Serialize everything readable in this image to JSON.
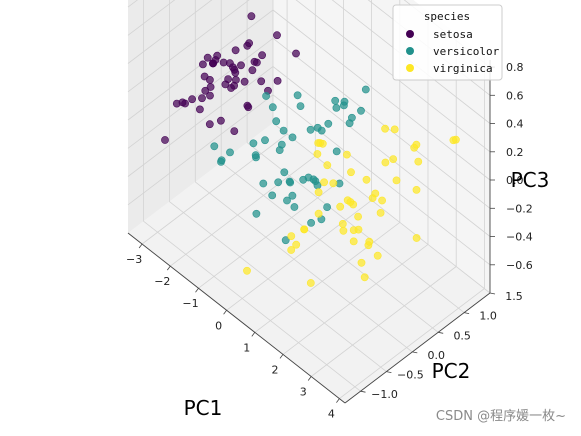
{
  "chart_data": {
    "type": "scatter",
    "projection": "3d",
    "xlabel": "PC1",
    "ylabel": "PC2",
    "zlabel": "PC3",
    "xlim": [
      -3.5,
      4.2
    ],
    "ylim": [
      -1.3,
      1.5
    ],
    "zlim": [
      -0.8,
      0.85
    ],
    "xticks": [
      "−3",
      "−2",
      "−1",
      "0",
      "1",
      "2",
      "3",
      "4"
    ],
    "yticks": [
      "−1.0",
      "−0.5",
      "0.0",
      "0.5",
      "1.0",
      "1.5"
    ],
    "zticks": [
      "−0.6",
      "−0.4",
      "−0.2",
      "0.0",
      "0.2",
      "0.4",
      "0.6",
      "0.8"
    ],
    "grid": true,
    "legend": {
      "title": "species",
      "placement": "top-right",
      "entries": [
        "setosa",
        "versicolor",
        "virginica"
      ]
    },
    "colors": {
      "setosa": "#440154",
      "versicolor": "#21918c",
      "virginica": "#fde725"
    },
    "series": [
      {
        "name": "setosa",
        "points": [
          [
            -2.7,
            0.32,
            0.03
          ],
          [
            -2.73,
            -0.18,
            0.25
          ],
          [
            -2.89,
            -0.14,
            -0.02
          ],
          [
            -2.75,
            -0.32,
            -0.08
          ],
          [
            -2.73,
            0.33,
            -0.09
          ],
          [
            -2.28,
            0.74,
            -0.17
          ],
          [
            -2.82,
            -0.09,
            -0.26
          ],
          [
            -2.63,
            0.16,
            0.02
          ],
          [
            -2.89,
            -0.58,
            0.02
          ],
          [
            -2.67,
            -0.11,
            0.2
          ],
          [
            -2.51,
            0.65,
            0.02
          ],
          [
            -2.61,
            0.01,
            -0.23
          ],
          [
            -2.79,
            -0.24,
            0.21
          ],
          [
            -3.22,
            -0.51,
            -0.06
          ],
          [
            -2.64,
            1.18,
            0.35
          ],
          [
            -2.39,
            1.34,
            -0.09
          ],
          [
            -2.62,
            0.81,
            0.01
          ],
          [
            -2.65,
            0.31,
            0.02
          ],
          [
            -2.2,
            0.87,
            0.2
          ],
          [
            -2.59,
            0.51,
            -0.26
          ],
          [
            -2.31,
            0.39,
            0.26
          ],
          [
            -2.54,
            0.43,
            -0.06
          ],
          [
            -3.22,
            0.13,
            -0.07
          ],
          [
            -2.3,
            0.1,
            -0.28
          ],
          [
            -2.36,
            -0.04,
            0.08
          ],
          [
            -2.51,
            -0.15,
            0.26
          ],
          [
            -2.47,
            0.13,
            -0.01
          ],
          [
            -2.56,
            0.37,
            0.07
          ],
          [
            -2.64,
            0.31,
            0.18
          ],
          [
            -2.63,
            -0.19,
            0.0
          ],
          [
            -2.59,
            -0.2,
            0.07
          ],
          [
            -2.41,
            0.41,
            0.22
          ],
          [
            -2.65,
            0.81,
            -0.18
          ],
          [
            -2.6,
            1.1,
            -0.25
          ],
          [
            -2.67,
            -0.11,
            0.2
          ],
          [
            -2.87,
            0.08,
            0.17
          ],
          [
            -2.63,
            0.61,
            0.34
          ],
          [
            -2.67,
            -0.11,
            0.2
          ],
          [
            -2.98,
            -0.48,
            -0.03
          ],
          [
            -2.59,
            0.23,
            0.09
          ],
          [
            -2.77,
            0.27,
            0.08
          ],
          [
            -2.85,
            -0.94,
            -0.14
          ],
          [
            -2.99,
            -0.34,
            -0.04
          ],
          [
            -2.41,
            0.19,
            0.04
          ],
          [
            -2.21,
            0.44,
            0.13
          ],
          [
            -2.71,
            -0.25,
            0.14
          ],
          [
            -2.54,
            0.5,
            -0.26
          ],
          [
            -2.84,
            -0.23,
            -0.04
          ],
          [
            -2.54,
            0.58,
            -0.02
          ],
          [
            -2.7,
            0.11,
            0.14
          ]
        ]
      },
      {
        "name": "versicolor",
        "points": [
          [
            1.28,
            0.69,
            0.41
          ],
          [
            0.93,
            0.32,
            0.02
          ],
          [
            1.46,
            0.5,
            0.34
          ],
          [
            0.18,
            -0.83,
            0.18
          ],
          [
            1.09,
            0.07,
            0.31
          ],
          [
            0.64,
            -0.42,
            -0.04
          ],
          [
            1.1,
            0.28,
            -0.17
          ],
          [
            -0.75,
            -1.0,
            0.05
          ],
          [
            1.04,
            0.23,
            0.42
          ],
          [
            -0.01,
            -0.72,
            -0.28
          ],
          [
            -0.51,
            -1.26,
            0.27
          ],
          [
            0.51,
            -0.1,
            -0.13
          ],
          [
            0.26,
            -0.55,
            0.47
          ],
          [
            0.98,
            -0.12,
            -0.06
          ],
          [
            -0.17,
            -0.25,
            0.22
          ],
          [
            0.93,
            0.47,
            0.33
          ],
          [
            0.66,
            -0.35,
            -0.23
          ],
          [
            0.24,
            -0.33,
            0.24
          ],
          [
            0.94,
            -0.54,
            0.36
          ],
          [
            0.04,
            -0.58,
            0.21
          ],
          [
            1.12,
            -0.08,
            -0.32
          ],
          [
            0.36,
            -0.07,
            0.36
          ],
          [
            1.3,
            -0.33,
            0.06
          ],
          [
            0.92,
            -0.18,
            0.31
          ],
          [
            0.71,
            0.15,
            0.18
          ],
          [
            0.9,
            0.33,
            0.32
          ],
          [
            1.33,
            0.24,
            0.43
          ],
          [
            1.56,
            0.27,
            0.37
          ],
          [
            0.81,
            -0.16,
            -0.05
          ],
          [
            -0.31,
            -0.37,
            0.41
          ],
          [
            -0.07,
            -0.7,
            0.12
          ],
          [
            -0.19,
            -0.68,
            0.18
          ],
          [
            0.14,
            -0.31,
            0.12
          ],
          [
            1.38,
            -0.42,
            -0.21
          ],
          [
            0.59,
            -0.48,
            -0.44
          ],
          [
            0.81,
            0.2,
            -0.36
          ],
          [
            1.22,
            0.41,
            0.24
          ],
          [
            0.81,
            -0.37,
            0.59
          ],
          [
            0.25,
            -0.27,
            -0.27
          ],
          [
            0.16,
            -0.68,
            -0.05
          ],
          [
            0.46,
            -0.67,
            -0.09
          ],
          [
            0.89,
            -0.03,
            -0.13
          ],
          [
            0.23,
            -0.4,
            0.12
          ],
          [
            -0.71,
            -1.01,
            0.07
          ],
          [
            0.36,
            -0.5,
            -0.06
          ],
          [
            0.33,
            -0.21,
            -0.24
          ],
          [
            0.38,
            -0.29,
            -0.11
          ],
          [
            0.64,
            0.11,
            0.2
          ],
          [
            -0.91,
            -0.74,
            0.02
          ],
          [
            0.3,
            -0.35,
            -0.04
          ]
        ]
      },
      {
        "name": "virginica",
        "points": [
          [
            2.53,
            -0.01,
            -0.53
          ],
          [
            1.41,
            -0.57,
            -0.21
          ],
          [
            2.62,
            0.34,
            0.2
          ],
          [
            1.97,
            -0.18,
            -0.07
          ],
          [
            2.35,
            -0.04,
            -0.12
          ],
          [
            3.4,
            0.55,
            0.27
          ],
          [
            0.52,
            -1.19,
            -0.47
          ],
          [
            2.93,
            0.35,
            0.48
          ],
          [
            2.32,
            -0.24,
            0.37
          ],
          [
            2.92,
            0.78,
            -0.41
          ],
          [
            1.66,
            0.24,
            -0.22
          ],
          [
            1.8,
            -0.22,
            0.08
          ],
          [
            2.17,
            0.22,
            0.04
          ],
          [
            1.34,
            -0.78,
            -0.21
          ],
          [
            1.59,
            -0.54,
            -0.57
          ],
          [
            1.9,
            0.12,
            -0.33
          ],
          [
            1.95,
            0.04,
            0.11
          ],
          [
            3.49,
            1.18,
            0.26
          ],
          [
            3.79,
            0.26,
            0.51
          ],
          [
            1.3,
            -0.76,
            -0.32
          ],
          [
            2.43,
            0.38,
            -0.11
          ],
          [
            1.2,
            -0.61,
            -0.34
          ],
          [
            3.5,
            0.46,
            0.43
          ],
          [
            1.39,
            -0.2,
            0.29
          ],
          [
            2.28,
            0.33,
            -0.07
          ],
          [
            2.61,
            0.56,
            0.01
          ],
          [
            1.26,
            -0.18,
            0.27
          ],
          [
            1.29,
            -0.12,
            -0.02
          ],
          [
            2.12,
            -0.21,
            -0.16
          ],
          [
            2.39,
            0.46,
            0.37
          ],
          [
            2.84,
            0.37,
            0.25
          ],
          [
            3.23,
            1.37,
            0.17
          ],
          [
            2.16,
            -0.22,
            -0.2
          ],
          [
            1.44,
            -0.14,
            0.13
          ],
          [
            1.78,
            -0.5,
            0.44
          ],
          [
            3.08,
            0.69,
            -0.02
          ],
          [
            2.14,
            0.14,
            -0.53
          ],
          [
            1.91,
            0.05,
            -0.11
          ],
          [
            1.17,
            -0.16,
            -0.25
          ],
          [
            2.11,
            0.37,
            -0.14
          ],
          [
            2.31,
            0.18,
            -0.39
          ],
          [
            1.92,
            0.41,
            -0.49
          ],
          [
            1.41,
            -0.57,
            -0.21
          ],
          [
            2.56,
            0.28,
            -0.15
          ],
          [
            2.42,
            0.3,
            -0.48
          ],
          [
            1.94,
            0.19,
            -0.34
          ],
          [
            1.53,
            -0.38,
            0.29
          ],
          [
            1.76,
            0.08,
            -0.13
          ],
          [
            1.9,
            0.12,
            -0.41
          ],
          [
            1.39,
            -0.28,
            -0.03
          ]
        ]
      }
    ]
  },
  "watermark": "CSDN @程序媛一枚~"
}
